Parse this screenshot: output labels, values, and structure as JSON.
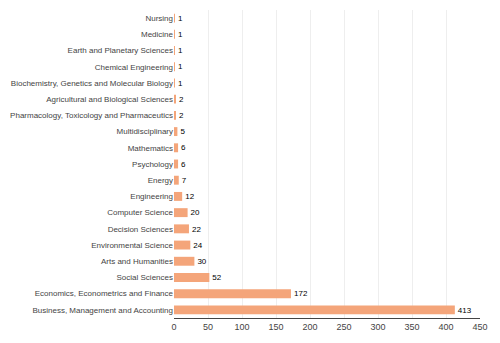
{
  "chart_data": {
    "type": "bar",
    "orientation": "horizontal",
    "categories": [
      "Business, Management and Accounting",
      "Economics, Econometrics and Finance",
      "Social Sciences",
      "Arts and Humanities",
      "Environmental Science",
      "Decision Sciences",
      "Computer Science",
      "Engineering",
      "Energy",
      "Psychology",
      "Mathematics",
      "Multidisciplinary",
      "Pharmacology, Toxicology and Pharmaceutics",
      "Agricultural and Biological Sciences",
      "Biochemistry, Genetics and Molecular Biology",
      "Chemical Engineering",
      "Earth and Planetary Sciences",
      "Medicine",
      "Nursing"
    ],
    "values": [
      413,
      172,
      52,
      30,
      24,
      22,
      20,
      12,
      7,
      6,
      6,
      5,
      2,
      2,
      1,
      1,
      1,
      1,
      1
    ],
    "color": "#F4A57A",
    "xlim": [
      0,
      450
    ],
    "xticks": [
      0,
      50,
      100,
      150,
      200,
      250,
      300,
      350,
      400,
      450
    ],
    "grid": true,
    "data_labels": true
  }
}
